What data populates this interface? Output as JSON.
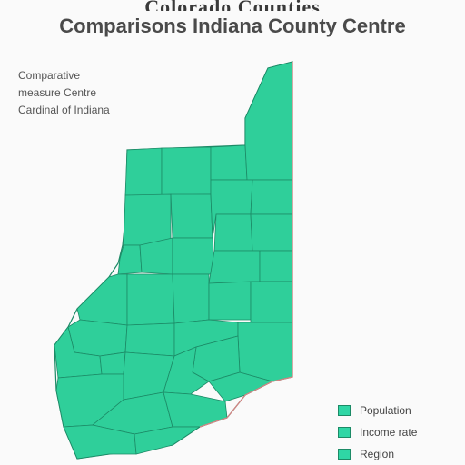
{
  "header": {
    "title_top": "Colorado Counties",
    "title": "Comparisons Indiana County Centre"
  },
  "notes": [
    "Comparative",
    "measure Centre",
    "Cardinal of Indiana"
  ],
  "legend": {
    "items": [
      {
        "label": "Population"
      },
      {
        "label": "Income rate"
      },
      {
        "label": "Region"
      }
    ]
  },
  "colors": {
    "county_fill": "#2fcf9a",
    "county_stroke": "#1c8a66",
    "state_border": "#d98282",
    "background": "#fafafa"
  }
}
